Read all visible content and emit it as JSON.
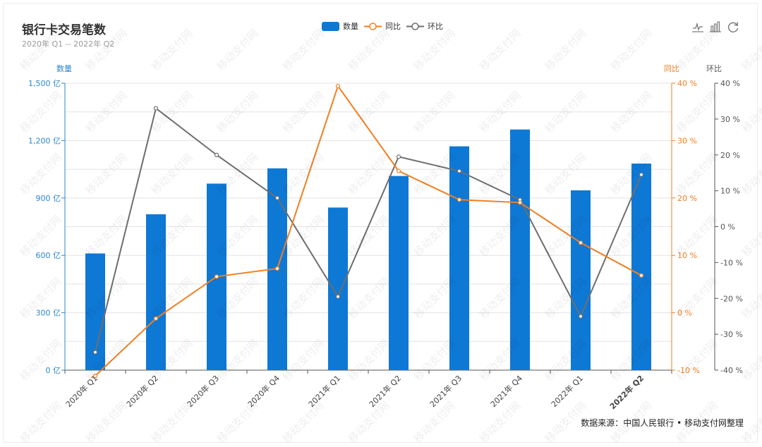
{
  "title": "银行卡交易笔数",
  "subtitle": "2020年 Q1 -- 2022年 Q2",
  "legend": {
    "bar": "数量",
    "yoy": "同比",
    "qoq": "环比"
  },
  "source": "数据来源：中国人民银行 • 移动支付网整理",
  "watermark": "移动支付网",
  "colors": {
    "bar": "#0e78d5",
    "yoy": "#f07f22",
    "qoq": "#6e6e6e",
    "axis_left": "#2a86d0",
    "axis_yoy": "#f07f22",
    "axis_qoq": "#555555"
  },
  "toolbox": [
    "line-chart-icon",
    "bar-chart-icon",
    "restore-icon"
  ],
  "chart_data": {
    "type": "bar",
    "categories": [
      "2020年 Q1",
      "2020年 Q2",
      "2020年 Q3",
      "2020年 Q4",
      "2021年 Q1",
      "2021年 Q2",
      "2021年 Q3",
      "2021年 Q4",
      "2022年 Q1",
      "2022年 Q2"
    ],
    "series": [
      {
        "name": "数量",
        "type": "bar",
        "axis": "left",
        "values": [
          610,
          815,
          975,
          1055,
          850,
          1015,
          1170,
          1258,
          940,
          1080
        ]
      },
      {
        "name": "同比",
        "type": "line",
        "axis": "yoy",
        "values": [
          -11,
          -1,
          6.3,
          7.7,
          39.5,
          24.7,
          19.7,
          19.2,
          12.2,
          6.5
        ]
      },
      {
        "name": "环比",
        "type": "line",
        "axis": "qoq",
        "values": [
          -35,
          33,
          20,
          8,
          -19.5,
          19.5,
          15.5,
          7.5,
          -25,
          14.5
        ]
      }
    ],
    "axes": {
      "left": {
        "label": "数量",
        "min": 0,
        "max": 1500,
        "ticks": [
          "0 亿",
          "300 亿",
          "600 亿",
          "900 亿",
          "1,200 亿",
          "1,500 亿"
        ],
        "tick_values": [
          0,
          300,
          600,
          900,
          1200,
          1500
        ]
      },
      "yoy": {
        "label": "同比",
        "min": -10,
        "max": 40,
        "ticks": [
          "-10 %",
          "0 %",
          "10 %",
          "20 %",
          "30 %",
          "40 %"
        ],
        "tick_values": [
          -10,
          0,
          10,
          20,
          30,
          40
        ]
      },
      "qoq": {
        "label": "环比",
        "min": -40,
        "max": 40,
        "ticks": [
          "-40 %",
          "-30 %",
          "-20 %",
          "-10 %",
          "0 %",
          "10 %",
          "20 %",
          "30 %",
          "40 %"
        ],
        "tick_values": [
          -40,
          -30,
          -20,
          -10,
          0,
          10,
          20,
          30,
          40
        ]
      }
    },
    "xlabel": "",
    "ylabel": "数量"
  }
}
